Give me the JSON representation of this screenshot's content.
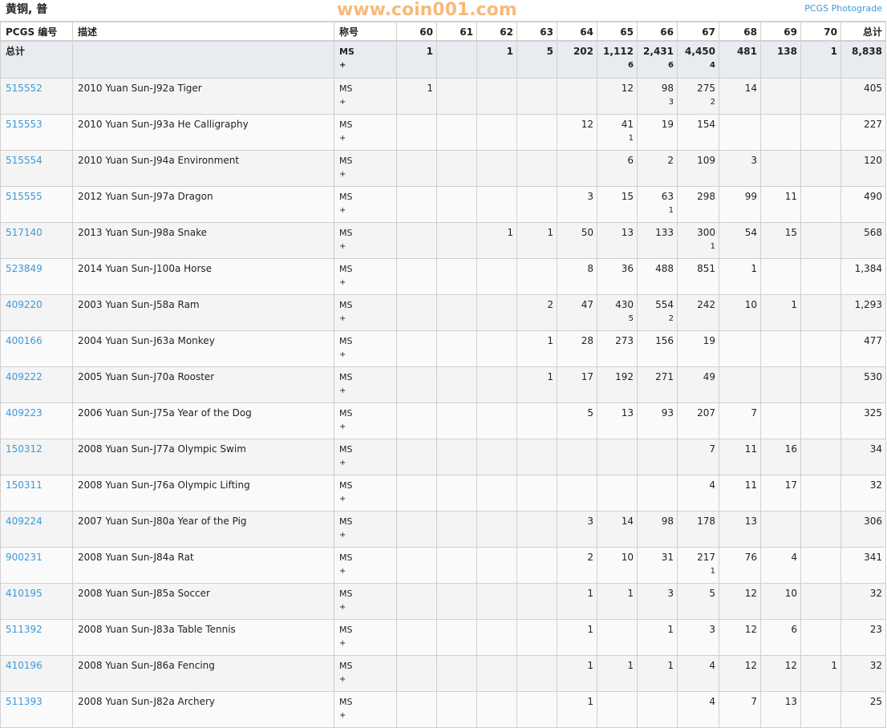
{
  "header": {
    "title": "黄铜, 普",
    "photograde_link": "PCGS Photograde"
  },
  "columns": {
    "pcgs": "PCGS 编号",
    "desc": "描述",
    "designation": "称号",
    "grades": [
      "60",
      "61",
      "62",
      "63",
      "64",
      "65",
      "66",
      "67",
      "68",
      "69",
      "70"
    ],
    "total": "总计"
  },
  "totals": {
    "label": "总计",
    "designation": "MS",
    "plus_mark": "+",
    "grades": [
      "1",
      "",
      "1",
      "5",
      "202",
      "1,112",
      "2,431",
      "4,450",
      "481",
      "138",
      "1"
    ],
    "plus": [
      "",
      "",
      "",
      "",
      "",
      "6",
      "6",
      "4",
      "",
      "",
      ""
    ],
    "total": "8,838"
  },
  "rows": [
    {
      "pcgs": "515552",
      "desc": "2010 Yuan Sun-J92a Tiger",
      "designation": "MS",
      "plus_mark": "+",
      "grades": [
        "1",
        "",
        "",
        "",
        "",
        "12",
        "98",
        "275",
        "14",
        "",
        ""
      ],
      "plus": [
        "",
        "",
        "",
        "",
        "",
        "",
        "3",
        "2",
        "",
        "",
        ""
      ],
      "total": "405"
    },
    {
      "pcgs": "515553",
      "desc": "2010 Yuan Sun-J93a He Calligraphy",
      "designation": "MS",
      "plus_mark": "+",
      "grades": [
        "",
        "",
        "",
        "",
        "12",
        "41",
        "19",
        "154",
        "",
        "",
        ""
      ],
      "plus": [
        "",
        "",
        "",
        "",
        "",
        "1",
        "",
        "",
        "",
        "",
        ""
      ],
      "total": "227"
    },
    {
      "pcgs": "515554",
      "desc": "2010 Yuan Sun-J94a Environment",
      "designation": "MS",
      "plus_mark": "+",
      "grades": [
        "",
        "",
        "",
        "",
        "",
        "6",
        "2",
        "109",
        "3",
        "",
        ""
      ],
      "plus": [
        "",
        "",
        "",
        "",
        "",
        "",
        "",
        "",
        "",
        "",
        ""
      ],
      "total": "120"
    },
    {
      "pcgs": "515555",
      "desc": "2012 Yuan Sun-J97a Dragon",
      "designation": "MS",
      "plus_mark": "+",
      "grades": [
        "",
        "",
        "",
        "",
        "3",
        "15",
        "63",
        "298",
        "99",
        "11",
        ""
      ],
      "plus": [
        "",
        "",
        "",
        "",
        "",
        "",
        "1",
        "",
        "",
        "",
        ""
      ],
      "total": "490"
    },
    {
      "pcgs": "517140",
      "desc": "2013 Yuan Sun-J98a Snake",
      "designation": "MS",
      "plus_mark": "+",
      "grades": [
        "",
        "",
        "1",
        "1",
        "50",
        "13",
        "133",
        "300",
        "54",
        "15",
        ""
      ],
      "plus": [
        "",
        "",
        "",
        "",
        "",
        "",
        "",
        "1",
        "",
        "",
        ""
      ],
      "total": "568"
    },
    {
      "pcgs": "523849",
      "desc": "2014 Yuan Sun-J100a Horse",
      "designation": "MS",
      "plus_mark": "+",
      "grades": [
        "",
        "",
        "",
        "",
        "8",
        "36",
        "488",
        "851",
        "1",
        "",
        ""
      ],
      "plus": [
        "",
        "",
        "",
        "",
        "",
        "",
        "",
        "",
        "",
        "",
        ""
      ],
      "total": "1,384"
    },
    {
      "pcgs": "409220",
      "desc": "2003 Yuan Sun-J58a Ram",
      "designation": "MS",
      "plus_mark": "+",
      "grades": [
        "",
        "",
        "",
        "2",
        "47",
        "430",
        "554",
        "242",
        "10",
        "1",
        ""
      ],
      "plus": [
        "",
        "",
        "",
        "",
        "",
        "5",
        "2",
        "",
        "",
        "",
        ""
      ],
      "total": "1,293"
    },
    {
      "pcgs": "400166",
      "desc": "2004 Yuan Sun-J63a Monkey",
      "designation": "MS",
      "plus_mark": "+",
      "grades": [
        "",
        "",
        "",
        "1",
        "28",
        "273",
        "156",
        "19",
        "",
        "",
        ""
      ],
      "plus": [
        "",
        "",
        "",
        "",
        "",
        "",
        "",
        "",
        "",
        "",
        ""
      ],
      "total": "477"
    },
    {
      "pcgs": "409222",
      "desc": "2005 Yuan Sun-J70a Rooster",
      "designation": "MS",
      "plus_mark": "+",
      "grades": [
        "",
        "",
        "",
        "1",
        "17",
        "192",
        "271",
        "49",
        "",
        "",
        ""
      ],
      "plus": [
        "",
        "",
        "",
        "",
        "",
        "",
        "",
        "",
        "",
        "",
        ""
      ],
      "total": "530"
    },
    {
      "pcgs": "409223",
      "desc": "2006 Yuan Sun-J75a Year of the Dog",
      "designation": "MS",
      "plus_mark": "+",
      "grades": [
        "",
        "",
        "",
        "",
        "5",
        "13",
        "93",
        "207",
        "7",
        "",
        ""
      ],
      "plus": [
        "",
        "",
        "",
        "",
        "",
        "",
        "",
        "",
        "",
        "",
        ""
      ],
      "total": "325"
    },
    {
      "pcgs": "150312",
      "desc": "2008 Yuan Sun-J77a Olympic Swim",
      "designation": "MS",
      "plus_mark": "+",
      "grades": [
        "",
        "",
        "",
        "",
        "",
        "",
        "",
        "7",
        "11",
        "16",
        ""
      ],
      "plus": [
        "",
        "",
        "",
        "",
        "",
        "",
        "",
        "",
        "",
        "",
        ""
      ],
      "total": "34"
    },
    {
      "pcgs": "150311",
      "desc": "2008 Yuan Sun-J76a Olympic Lifting",
      "designation": "MS",
      "plus_mark": "+",
      "grades": [
        "",
        "",
        "",
        "",
        "",
        "",
        "",
        "4",
        "11",
        "17",
        ""
      ],
      "plus": [
        "",
        "",
        "",
        "",
        "",
        "",
        "",
        "",
        "",
        "",
        ""
      ],
      "total": "32"
    },
    {
      "pcgs": "409224",
      "desc": "2007 Yuan Sun-J80a Year of the Pig",
      "designation": "MS",
      "plus_mark": "+",
      "grades": [
        "",
        "",
        "",
        "",
        "3",
        "14",
        "98",
        "178",
        "13",
        "",
        ""
      ],
      "plus": [
        "",
        "",
        "",
        "",
        "",
        "",
        "",
        "",
        "",
        "",
        ""
      ],
      "total": "306"
    },
    {
      "pcgs": "900231",
      "desc": "2008 Yuan Sun-J84a Rat",
      "designation": "MS",
      "plus_mark": "+",
      "grades": [
        "",
        "",
        "",
        "",
        "2",
        "10",
        "31",
        "217",
        "76",
        "4",
        ""
      ],
      "plus": [
        "",
        "",
        "",
        "",
        "",
        "",
        "",
        "1",
        "",
        "",
        ""
      ],
      "total": "341"
    },
    {
      "pcgs": "410195",
      "desc": "2008 Yuan Sun-J85a Soccer",
      "designation": "MS",
      "plus_mark": "+",
      "grades": [
        "",
        "",
        "",
        "",
        "1",
        "1",
        "3",
        "5",
        "12",
        "10",
        ""
      ],
      "plus": [
        "",
        "",
        "",
        "",
        "",
        "",
        "",
        "",
        "",
        "",
        ""
      ],
      "total": "32"
    },
    {
      "pcgs": "511392",
      "desc": "2008 Yuan Sun-J83a Table Tennis",
      "designation": "MS",
      "plus_mark": "+",
      "grades": [
        "",
        "",
        "",
        "",
        "1",
        "",
        "1",
        "3",
        "12",
        "6",
        ""
      ],
      "plus": [
        "",
        "",
        "",
        "",
        "",
        "",
        "",
        "",
        "",
        "",
        ""
      ],
      "total": "23"
    },
    {
      "pcgs": "410196",
      "desc": "2008 Yuan Sun-J86a Fencing",
      "designation": "MS",
      "plus_mark": "+",
      "grades": [
        "",
        "",
        "",
        "",
        "1",
        "1",
        "1",
        "4",
        "12",
        "12",
        "1"
      ],
      "plus": [
        "",
        "",
        "",
        "",
        "",
        "",
        "",
        "",
        "",
        "",
        ""
      ],
      "total": "32"
    },
    {
      "pcgs": "511393",
      "desc": "2008 Yuan Sun-J82a Archery",
      "designation": "MS",
      "plus_mark": "+",
      "grades": [
        "",
        "",
        "",
        "",
        "1",
        "",
        "",
        "4",
        "7",
        "13",
        ""
      ],
      "plus": [
        "",
        "",
        "",
        "",
        "",
        "",
        "",
        "",
        "",
        "",
        ""
      ],
      "total": "25"
    }
  ],
  "watermark": "www.coin001.com",
  "colors": {
    "link": "#3a9ad9",
    "totals_bg": "#e8ecf0",
    "watermark": "#f6a85a"
  }
}
